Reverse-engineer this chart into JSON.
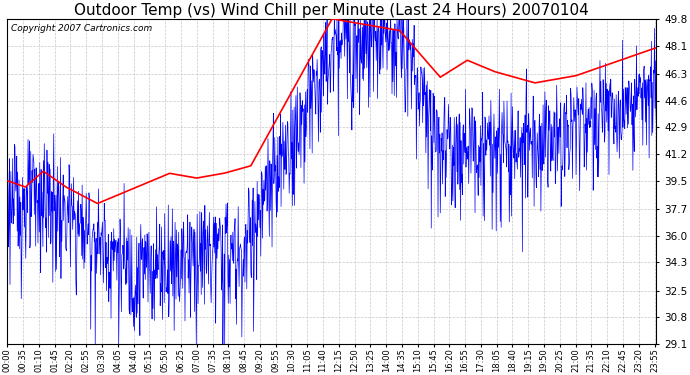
{
  "title": "Outdoor Temp (vs) Wind Chill per Minute (Last 24 Hours) 20070104",
  "copyright_text": "Copyright 2007 Cartronics.com",
  "yticks": [
    29.1,
    30.8,
    32.5,
    34.3,
    36.0,
    37.7,
    39.5,
    41.2,
    42.9,
    44.6,
    46.3,
    48.1,
    49.8
  ],
  "ymin": 29.1,
  "ymax": 49.8,
  "bg_color": "#ffffff",
  "plot_bg_color": "#ffffff",
  "grid_color": "#c8c8c8",
  "blue_color": "#0000ff",
  "red_color": "#ff0000",
  "title_fontsize": 11,
  "n_minutes": 1440,
  "x_tick_interval": 35,
  "x_tick_labels": [
    "00:00",
    "00:35",
    "01:10",
    "01:45",
    "02:20",
    "02:55",
    "03:30",
    "04:05",
    "04:40",
    "05:15",
    "05:50",
    "06:25",
    "07:00",
    "07:35",
    "08:10",
    "08:45",
    "09:20",
    "09:55",
    "10:30",
    "11:05",
    "11:40",
    "12:15",
    "12:50",
    "13:25",
    "14:00",
    "14:35",
    "15:10",
    "15:45",
    "16:20",
    "16:55",
    "17:30",
    "18:05",
    "18:40",
    "19:15",
    "19:50",
    "20:25",
    "21:00",
    "21:35",
    "22:10",
    "22:45",
    "23:20",
    "23:55"
  ]
}
